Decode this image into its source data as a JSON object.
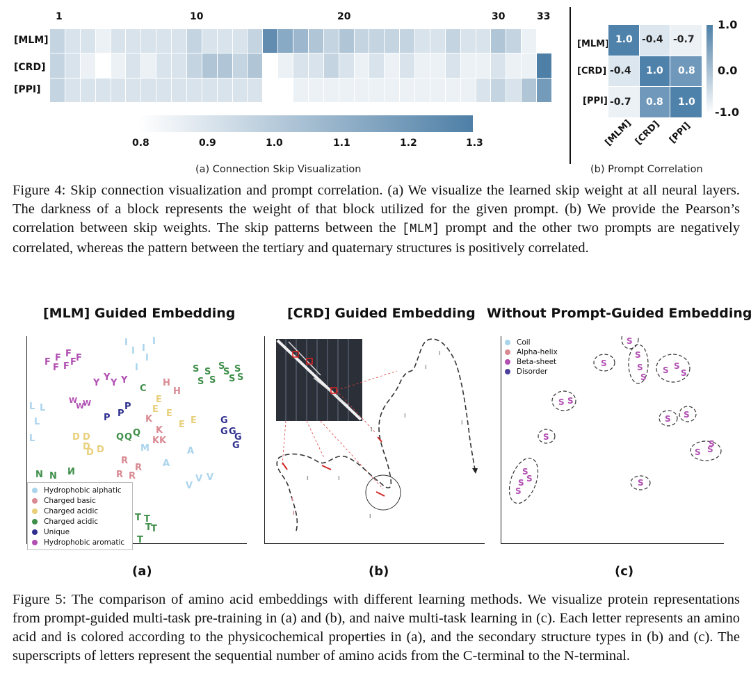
{
  "fig4": {
    "panel_a": {
      "sublabel": "(a) Connection Skip Visualization",
      "layer_ticks": [
        "1",
        "10",
        "20",
        "30",
        "33"
      ],
      "rows": [
        "[MLM]",
        "[CRD]",
        "[PPI]"
      ],
      "colorbar_ticks": [
        "0.8",
        "0.9",
        "1.0",
        "1.1",
        "1.2",
        "1.3"
      ]
    },
    "panel_b": {
      "sublabel": "(b) Prompt Correlation",
      "labels": [
        "[MLM]",
        "[CRD]",
        "[PPI]"
      ],
      "values": [
        [
          "1.0",
          "-0.4",
          "-0.7"
        ],
        [
          "-0.4",
          "1.0",
          "0.8"
        ],
        [
          "-0.7",
          "0.8",
          "1.0"
        ]
      ],
      "colorbar_ticks": [
        "1.0",
        "0.0",
        "-1.0"
      ]
    },
    "caption_prefix": "Figure 4: Skip connection visualization and prompt correlation. (a) We visualize the learned skip weight at all neural layers. The darkness of a block represents the weight of that block utilized for the given prompt. (b) We provide the Pearson’s correlation between skip weights. The skip patterns between the ",
    "caption_code": "[MLM]",
    "caption_suffix": " prompt and the other two prompts are negatively correlated, whereas the pattern between the tertiary and quaternary structures is positively correlated."
  },
  "fig5": {
    "panel_a": {
      "title": "[MLM] Guided Embedding",
      "sublabel": "(a)",
      "legend": [
        {
          "label": "Hydrophobic alphatic",
          "color": "#a9d4ec"
        },
        {
          "label": "Charged basic",
          "color": "#d98a93"
        },
        {
          "label": "Charged acidic",
          "color": "#e8cf7a"
        },
        {
          "label": "Charged acidic",
          "color": "#3f8f4a"
        },
        {
          "label": "Unique",
          "color": "#2e2f8f"
        },
        {
          "label": "Hydrophobic aromatic",
          "color": "#b14fb3"
        }
      ]
    },
    "panel_b": {
      "title": "[CRD] Guided Embedding",
      "sublabel": "(b)"
    },
    "panel_c": {
      "title": "Without Prompt-Guided Embedding",
      "sublabel": "(c)",
      "legend": [
        {
          "label": "Coil",
          "color": "#a9d4ec"
        },
        {
          "label": "Alpha-helix",
          "color": "#d98a93"
        },
        {
          "label": "Beta-sheet",
          "color": "#b14fb3"
        },
        {
          "label": "Disorder",
          "color": "#4a3f9a"
        }
      ]
    },
    "caption": "Figure 5: The comparison of amino acid embeddings with different learning methods. We visualize protein representations from prompt-guided multi-task pre-training in (a) and (b), and naive multi-task learning in (c). Each letter represents an amino acid and is colored according to the physicochemical properties in (a), and the secondary structure types in (b) and (c). The superscripts of letters represent the sequential number of amino acids from the C-terminal to the N-terminal."
  }
}
